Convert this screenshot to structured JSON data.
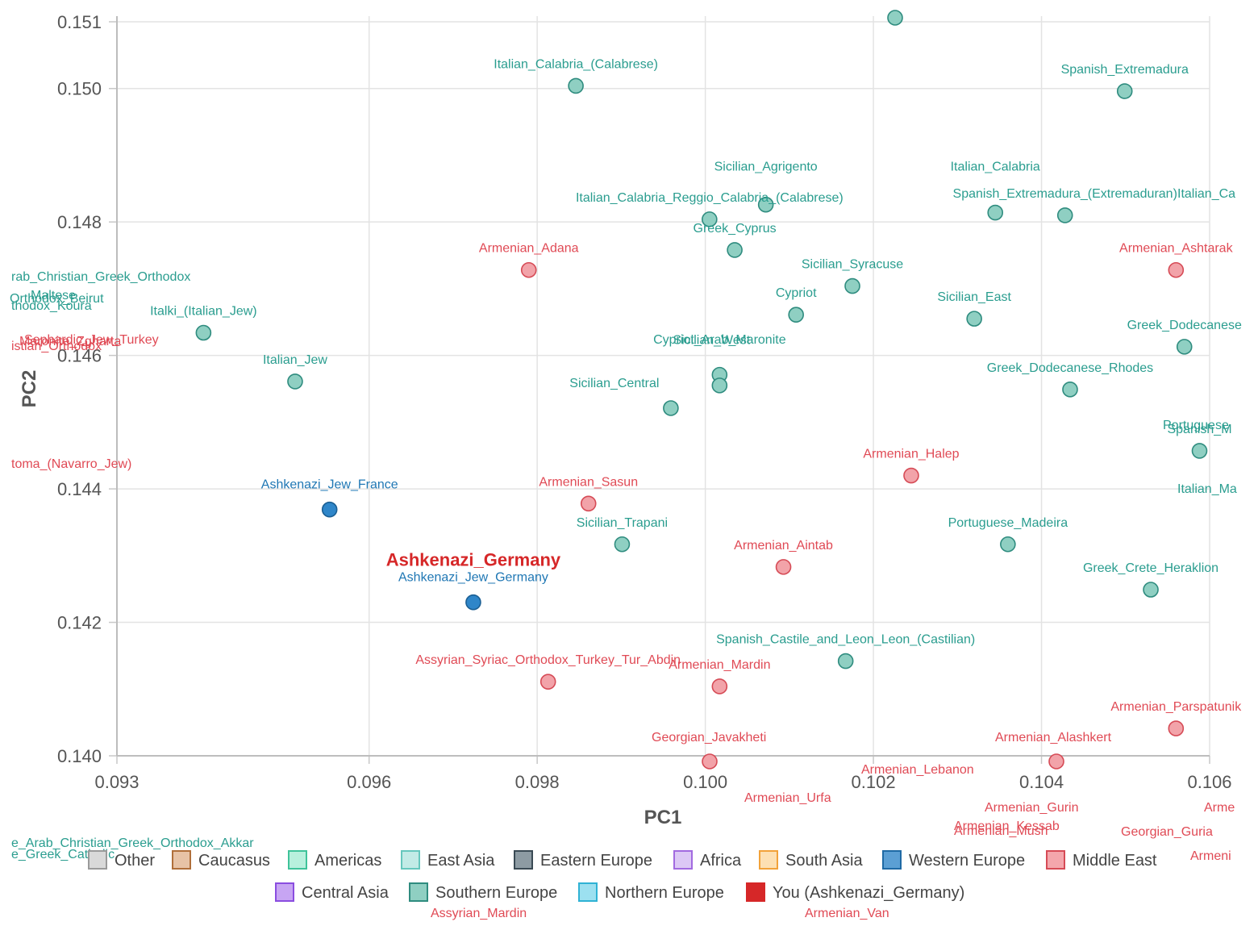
{
  "chart_data": {
    "type": "scatter",
    "xlabel": "PC1",
    "ylabel": "PC2",
    "xlim": [
      0.093,
      0.106
    ],
    "ylim": [
      0.14,
      0.151
    ],
    "grid": true,
    "x_ticks": [
      "0.093",
      "0.096",
      "0.098",
      "0.100",
      "0.102",
      "0.104",
      "0.106"
    ],
    "x_tick_values": [
      0.093,
      0.096,
      0.098,
      0.1,
      0.102,
      0.104,
      0.106
    ],
    "y_ticks": [
      "0.151",
      "0.150",
      "0.148",
      "0.146",
      "0.144",
      "0.142",
      "0.140"
    ],
    "y_tick_values": [
      0.151,
      0.15,
      0.148,
      0.146,
      0.144,
      0.142,
      0.14
    ],
    "highlight": {
      "label": "Ashkenazi_Germany",
      "x": 0.09724,
      "y": 0.1423
    },
    "colors": {
      "Southern Europe": "#2a9d8f",
      "Middle East": "#e04a55",
      "Western Europe": "#1f77b4",
      "You": "#d62728"
    },
    "points": [
      {
        "label": "Italian_Calabria_(Calabrese)",
        "x": 0.09846,
        "y": 0.15004,
        "group": "Southern Europe"
      },
      {
        "label": "Spanish_Extremadura",
        "x": 0.10499,
        "y": 0.14996,
        "group": "Southern Europe"
      },
      {
        "label": "Sicilian_Agrigento",
        "x": 0.10072,
        "y": 0.14826,
        "group": "Southern Europe"
      },
      {
        "label": "Italian_Calabria_Reggio_Calabria_(Calabrese)",
        "x": 0.10005,
        "y": 0.14804,
        "group": "Southern Europe"
      },
      {
        "label": "Italian_Calabria",
        "x": 0.10345,
        "y": 0.14814,
        "group": "Southern Europe"
      },
      {
        "label": "Spanish_Extremadura_(Extremaduran)",
        "x": 0.10428,
        "y": 0.1481,
        "group": "Southern Europe"
      },
      {
        "label": "Greek_Cyprus",
        "x": 0.10035,
        "y": 0.14758,
        "group": "Southern Europe"
      },
      {
        "label": "Armenian_Adana",
        "x": 0.0979,
        "y": 0.14728,
        "group": "Middle East"
      },
      {
        "label": "Armenian_Ashtarak",
        "x": 0.1056,
        "y": 0.14728,
        "group": "Middle East"
      },
      {
        "label": "Sicilian_Syracuse",
        "x": 0.10175,
        "y": 0.14704,
        "group": "Southern Europe"
      },
      {
        "label": "Cypriot",
        "x": 0.10108,
        "y": 0.14661,
        "group": "Southern Europe"
      },
      {
        "label": "Sicilian_East",
        "x": 0.1032,
        "y": 0.14655,
        "group": "Southern Europe"
      },
      {
        "label": "Italki_(Italian_Jew)",
        "x": 0.09403,
        "y": 0.14634,
        "group": "Southern Europe"
      },
      {
        "label": "Greek_Dodecanese",
        "x": 0.1057,
        "y": 0.14613,
        "group": "Southern Europe"
      },
      {
        "label": "Sicilian_West",
        "x": 0.10017,
        "y": 0.14571,
        "group": "Southern Europe"
      },
      {
        "label": "Cypriot_Arab_Maronite",
        "x": 0.10017,
        "y": 0.14555,
        "group": "Southern Europe"
      },
      {
        "label": "Italian_Jew",
        "x": 0.09512,
        "y": 0.14561,
        "group": "Southern Europe"
      },
      {
        "label": "Greek_Dodecanese_Rhodes",
        "x": 0.10434,
        "y": 0.14549,
        "group": "Southern Europe"
      },
      {
        "label": "Sicilian_Central",
        "x": 0.09959,
        "y": 0.14521,
        "group": "Southern Europe"
      },
      {
        "label": "Spanish_M",
        "x": 0.10588,
        "y": 0.14457,
        "group": "Southern Europe"
      },
      {
        "label": "Armenian_Halep",
        "x": 0.10245,
        "y": 0.1442,
        "group": "Middle East"
      },
      {
        "label": "Ashkenazi_Jew_France",
        "x": 0.09553,
        "y": 0.14369,
        "group": "Western Europe"
      },
      {
        "label": "Armenian_Sasun",
        "x": 0.09861,
        "y": 0.14378,
        "group": "Middle East"
      },
      {
        "label": "Sicilian_Trapani",
        "x": 0.09901,
        "y": 0.14317,
        "group": "Southern Europe"
      },
      {
        "label": "Portuguese_Madeira",
        "x": 0.1036,
        "y": 0.14317,
        "group": "Southern Europe"
      },
      {
        "label": "Armenian_Aintab",
        "x": 0.10093,
        "y": 0.14283,
        "group": "Middle East"
      },
      {
        "label": "Greek_Crete_Heraklion",
        "x": 0.1053,
        "y": 0.14249,
        "group": "Southern Europe"
      },
      {
        "label": "Ashkenazi_Jew_Germany",
        "x": 0.09724,
        "y": 0.1423,
        "group": "Western Europe"
      },
      {
        "label": "Spanish_Castile_and_Leon_Leon_(Castilian)",
        "x": 0.10167,
        "y": 0.14142,
        "group": "Southern Europe"
      },
      {
        "label": "Assyrian_Syriac_Orthodox_Turkey_Tur_Abdin",
        "x": 0.09813,
        "y": 0.14111,
        "group": "Middle East"
      },
      {
        "label": "Armenian_Mardin",
        "x": 0.10017,
        "y": 0.14104,
        "group": "Middle East"
      },
      {
        "label": "Armenian_Parspatunik",
        "x": 0.1056,
        "y": 0.14041,
        "group": "Middle East"
      }
    ],
    "offscreen_labels": [
      {
        "label": "Italian_Ca",
        "group": "Southern Europe"
      },
      {
        "label": "rab_Christian_Greek_Orthodox",
        "group": "Southern Europe"
      },
      {
        "label": "Maltese",
        "group": "Southern Europe"
      },
      {
        "label": "Orthodox_Beirut",
        "group": "Southern Europe"
      },
      {
        "label": "thodox_Koura",
        "group": "Southern Europe"
      },
      {
        "label": "Sephardic_Jew_Turkey",
        "group": "Middle East"
      },
      {
        "label": "Maronite_Zgharta",
        "group": "Middle East"
      },
      {
        "label": "istian_Orthodox",
        "group": "Middle East"
      },
      {
        "label": "Portuguese",
        "group": "Southern Europe"
      },
      {
        "label": "Italian_Ma",
        "group": "Southern Europe"
      },
      {
        "label": "toma_(Navarro_Jew)",
        "group": "Middle East"
      },
      {
        "label": "Georgian_Javakheti",
        "group": "Middle East"
      },
      {
        "label": "Armenian_Alashkert",
        "group": "Middle East"
      },
      {
        "label": "Armenian_Lebanon",
        "group": "Middle East"
      },
      {
        "label": "Armenian_Urfa",
        "group": "Middle East"
      },
      {
        "label": "Armenian_Gurin",
        "group": "Middle East"
      },
      {
        "label": "Armenian_Kessab",
        "group": "Middle East"
      },
      {
        "label": "Armenian_Mush",
        "group": "Middle East"
      },
      {
        "label": "Georgian_Guria",
        "group": "Middle East"
      },
      {
        "label": "Arme",
        "group": "Middle East"
      },
      {
        "label": "Armeni",
        "group": "Middle East"
      },
      {
        "label": "e_Arab_Christian_Greek_Orthodox_Akkar",
        "group": "Southern Europe"
      },
      {
        "label": "e_Greek_Catholic",
        "group": "Southern Europe"
      },
      {
        "label": "Assyrian_Mardin",
        "group": "Middle East"
      },
      {
        "label": "Armenian_Van",
        "group": "Middle East"
      }
    ],
    "legend": [
      {
        "name": "Other",
        "fill": "#d9d9d9",
        "stroke": "#9a9a9a"
      },
      {
        "name": "Caucasus",
        "fill": "#e7c3a6",
        "stroke": "#b06f3a"
      },
      {
        "name": "Americas",
        "fill": "#b8f0dd",
        "stroke": "#3fc39a"
      },
      {
        "name": "East Asia",
        "fill": "#c2ebe6",
        "stroke": "#66c7bd"
      },
      {
        "name": "Eastern Europe",
        "fill": "#8d9ba3",
        "stroke": "#3a4a54"
      },
      {
        "name": "Africa",
        "fill": "#dcc8f5",
        "stroke": "#a26ae0"
      },
      {
        "name": "South Asia",
        "fill": "#fde0b3",
        "stroke": "#f2a23a"
      },
      {
        "name": "Western Europe",
        "fill": "#5b9fd4",
        "stroke": "#1f6aa5"
      },
      {
        "name": "Middle East",
        "fill": "#f4a6ac",
        "stroke": "#d64b56"
      },
      {
        "name": "Central Asia",
        "fill": "#c7a5f3",
        "stroke": "#8a4de0"
      },
      {
        "name": "Southern Europe",
        "fill": "#8fcfc2",
        "stroke": "#2f8c7f"
      },
      {
        "name": "Northern Europe",
        "fill": "#9ce0f0",
        "stroke": "#2fb2d4"
      },
      {
        "name": "You (Ashkenazi_Germany)",
        "fill": "#d62728",
        "stroke": "#d62728"
      }
    ]
  }
}
